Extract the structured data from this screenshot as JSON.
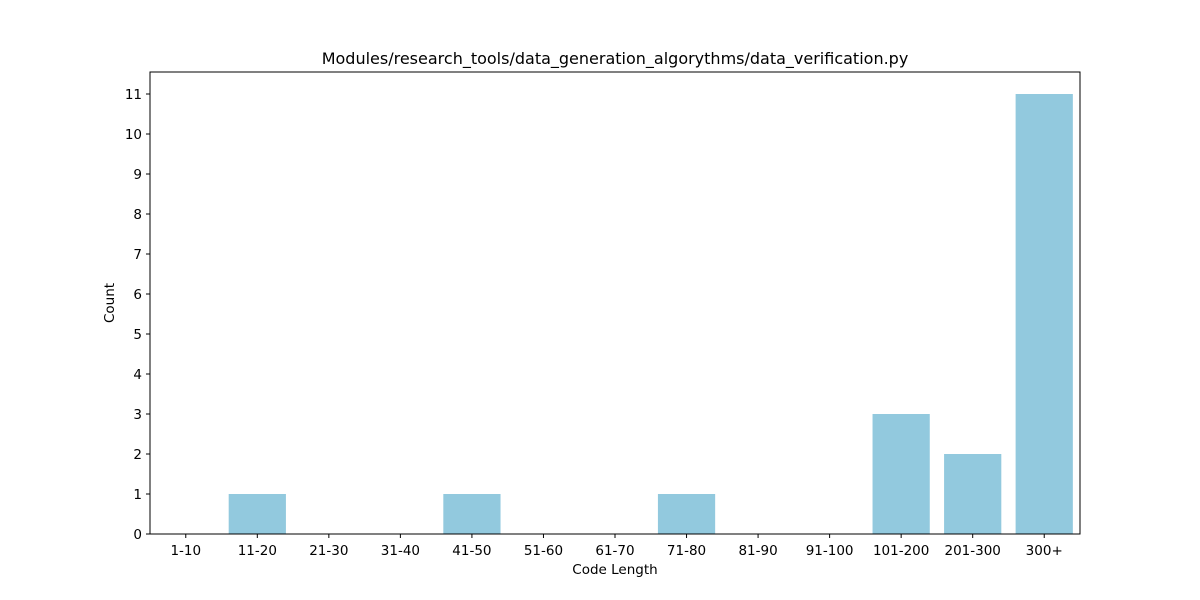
{
  "chart_data": {
    "type": "bar",
    "title": "Modules/research_tools/data_generation_algorythms/data_verification.py",
    "xlabel": "Code Length",
    "ylabel": "Count",
    "categories": [
      "1-10",
      "11-20",
      "21-30",
      "31-40",
      "41-50",
      "51-60",
      "61-70",
      "71-80",
      "81-90",
      "91-100",
      "101-200",
      "201-300",
      "300+"
    ],
    "values": [
      0,
      1,
      0,
      0,
      1,
      0,
      0,
      1,
      0,
      0,
      3,
      2,
      11
    ],
    "yticks": [
      0,
      1,
      2,
      3,
      4,
      5,
      6,
      7,
      8,
      9,
      10,
      11
    ],
    "ylim": [
      0,
      11.55
    ],
    "grid": false,
    "bar_color": "#92c9de"
  }
}
